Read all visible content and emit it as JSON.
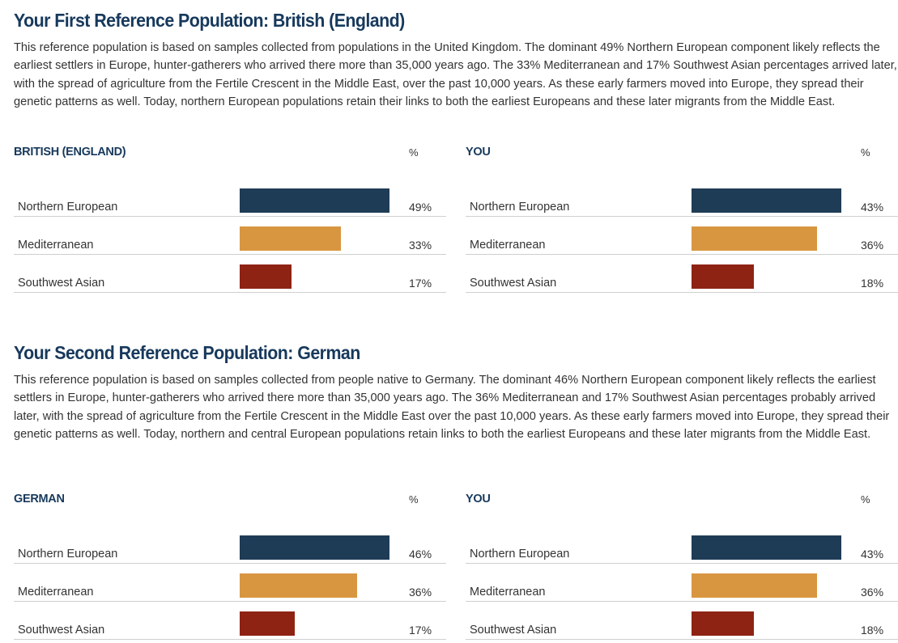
{
  "colors": {
    "Northern European": "#1f3c56",
    "Mediterranean": "#d89641",
    "Southwest Asian": "#8e2314"
  },
  "sections": [
    {
      "title": "Your First Reference Population: British (England)",
      "text": "This reference population is based on samples collected from populations in the United Kingdom. The dominant 49% Northern European component likely reflects the earliest settlers in Europe, hunter-gatherers who arrived there more than 35,000 years ago.  The 33% Mediterranean and 17% Southwest Asian percentages arrived later, with the spread of agriculture from the Fertile Crescent in the Middle East, over the past 10,000 years.  As these early farmers moved into Europe, they spread their genetic patterns as well. Today, northern European populations retain their links to both the earliest Europeans and these later migrants from the Middle East.",
      "panels": [
        {
          "title": "BRITISH (ENGLAND)",
          "pct_header": "%",
          "rows": [
            {
              "label": "Northern European",
              "value": 49,
              "display": "49%"
            },
            {
              "label": "Mediterranean",
              "value": 33,
              "display": "33%"
            },
            {
              "label": "Southwest Asian",
              "value": 17,
              "display": "17%"
            }
          ]
        },
        {
          "title": "YOU",
          "pct_header": "%",
          "rows": [
            {
              "label": "Northern European",
              "value": 43,
              "display": "43%"
            },
            {
              "label": "Mediterranean",
              "value": 36,
              "display": "36%"
            },
            {
              "label": "Southwest Asian",
              "value": 18,
              "display": "18%"
            }
          ]
        }
      ]
    },
    {
      "title": "Your Second Reference Population: German",
      "text": "This reference population is based on samples collected from people native to Germany. The dominant 46% Northern European component likely reflects the earliest settlers in Europe, hunter-gatherers who arrived there more than 35,000 years ago. The 36% Mediterranean and 17% Southwest Asian percentages probably arrived later, with the spread of agriculture from the Fertile Crescent in the Middle East over the past 10,000 years. As these early farmers moved into Europe, they spread their genetic patterns as well. Today, northern and central European populations retain links to both the earliest Europeans and these later migrants from the Middle East.",
      "panels": [
        {
          "title": "GERMAN",
          "pct_header": "%",
          "rows": [
            {
              "label": "Northern European",
              "value": 46,
              "display": "46%"
            },
            {
              "label": "Mediterranean",
              "value": 36,
              "display": "36%"
            },
            {
              "label": "Southwest Asian",
              "value": 17,
              "display": "17%"
            }
          ]
        },
        {
          "title": "YOU",
          "pct_header": "%",
          "rows": [
            {
              "label": "Northern European",
              "value": 43,
              "display": "43%"
            },
            {
              "label": "Mediterranean",
              "value": 36,
              "display": "36%"
            },
            {
              "label": "Southwest Asian",
              "value": 18,
              "display": "18%"
            }
          ]
        }
      ]
    }
  ]
}
